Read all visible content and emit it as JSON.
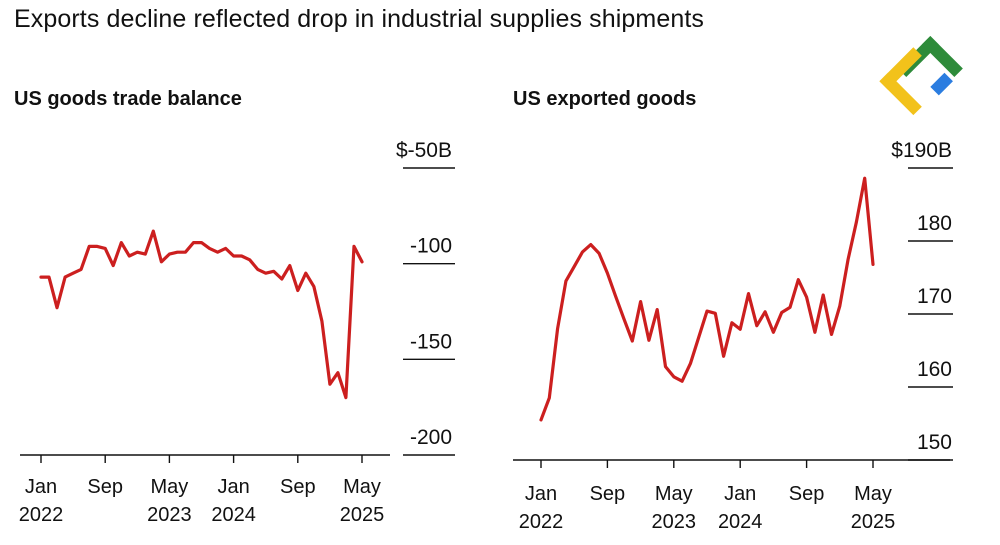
{
  "title": "Exports decline reflected drop in industrial supplies shipments",
  "logo": {
    "icon": "brand-logo-icon",
    "colors": [
      "#2e8b3a",
      "#f2c21b",
      "#2b7de0"
    ]
  },
  "line_color": "#cc1f1f",
  "chart_data": [
    {
      "type": "line",
      "title": "US goods trade balance",
      "ylabel": "",
      "ylim": [
        -200,
        -50
      ],
      "yticks": [
        -50,
        -100,
        -150,
        -200
      ],
      "ytick_labels": [
        "$-50B",
        "-100",
        "-150",
        "-200"
      ],
      "xticks": [
        0,
        8,
        16,
        24,
        32,
        40
      ],
      "xtick_labels": [
        [
          "Jan",
          "2022"
        ],
        [
          "Sep",
          ""
        ],
        [
          "May",
          "2023"
        ],
        [
          "Jan",
          "2024"
        ],
        [
          "Sep",
          ""
        ],
        [
          "May",
          "2025"
        ]
      ],
      "x_start": "2022-01",
      "values": [
        -107,
        -107,
        -123,
        -107,
        -105,
        -103,
        -91,
        -91,
        -92,
        -101,
        -89,
        -96,
        -94,
        -95,
        -83,
        -99,
        -95,
        -94,
        -94,
        -89,
        -89,
        -92,
        -94,
        -92,
        -96,
        -96,
        -98,
        -103,
        -105,
        -104,
        -108,
        -101,
        -114,
        -105,
        -112,
        -130,
        -163,
        -157,
        -170,
        -91,
        -99
      ]
    },
    {
      "type": "line",
      "title": "US exported goods",
      "ylabel": "",
      "ylim": [
        150,
        190
      ],
      "yticks": [
        190,
        180,
        170,
        160,
        150
      ],
      "ytick_labels": [
        "$190B",
        "180",
        "170",
        "160",
        "150"
      ],
      "xticks": [
        0,
        8,
        16,
        24,
        32,
        40
      ],
      "xtick_labels": [
        [
          "Jan",
          "2022"
        ],
        [
          "Sep",
          ""
        ],
        [
          "May",
          "2023"
        ],
        [
          "Jan",
          "2024"
        ],
        [
          "Sep",
          ""
        ],
        [
          "May",
          "2025"
        ]
      ],
      "x_start": "2022-01",
      "values": [
        155.5,
        158.5,
        168,
        174.5,
        176.5,
        178.5,
        179.5,
        178.3,
        175.6,
        172.4,
        169.3,
        166.3,
        171.7,
        166.4,
        170.6,
        162.8,
        161.4,
        160.8,
        163.2,
        166.8,
        170.4,
        170.1,
        164.2,
        168.8,
        167.9,
        172.8,
        168.4,
        170.3,
        167.5,
        170.2,
        170.9,
        174.7,
        172.3,
        167.5,
        172.6,
        167.2,
        171.1,
        177.5,
        182.6,
        188.6,
        176.8
      ]
    }
  ]
}
